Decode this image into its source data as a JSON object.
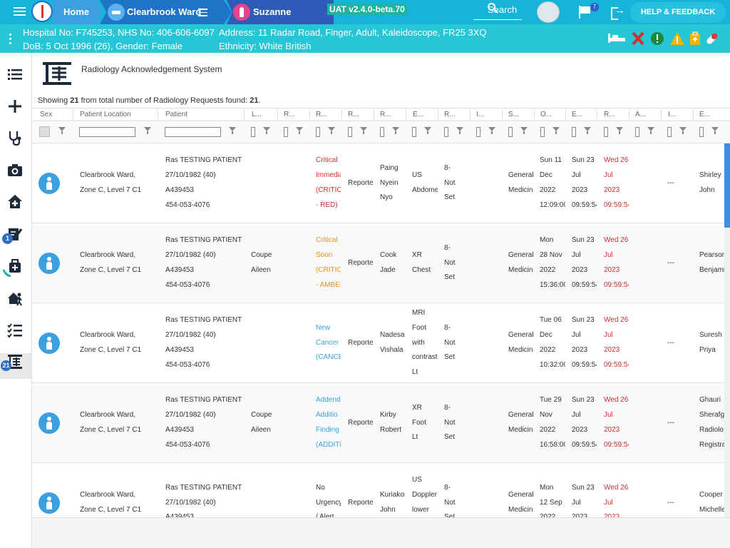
{
  "topbar": {
    "home_label": "Home",
    "ward_label": "Clearbrook Ward",
    "patient_name": "Suzanne SYMONS",
    "version": "UAT v2.4.0-beta.70",
    "search_label": "Search",
    "flag_count": "7",
    "help_label": "HELP & FEEDBACK"
  },
  "banner": {
    "line1_left": "Hospital No: F745253, NHS No: 406-606-6097",
    "line2_left": "DoB: 5 Oct 1996 (26), Gender: Female",
    "line1_right": "Address: 11 Radar Road, Finger, Adult, Kaleidoscope, FR25 3XQ",
    "line2_right": "Ethnicity: White British"
  },
  "sidebar": {
    "badge_notes": "1",
    "badge_radiology": "21"
  },
  "page": {
    "title": "Radiology Acknowledgement System",
    "showing_prefix": "Showing ",
    "showing_count": "21",
    "showing_mid": " from total number of Radiology Requests found: ",
    "showing_total": "21",
    "showing_suffix": "."
  },
  "columns": [
    "Sex",
    "Patient Location",
    "Patient",
    "L...",
    "R...",
    "R...",
    "R...",
    "R...",
    "E...",
    "R...",
    "I...",
    "S...",
    "O...",
    "E...",
    "R...",
    "A...",
    "I...",
    "E..."
  ],
  "rows": [
    {
      "location": [
        "Clearbrook Ward,",
        "Zone C, Level 7 C1"
      ],
      "patient": [
        "Ras TESTING PATIENT",
        "27/10/1982 (40)",
        "A439453",
        "454-053-4076"
      ],
      "requester": [],
      "priority": [
        "Critical",
        "Immedia",
        "(CRITIC",
        "- RED)"
      ],
      "priority_color": "red",
      "status": "Reporte",
      "reporter": [
        "Paing",
        "Nyein",
        "Nyo"
      ],
      "exam": [
        "US",
        "Abdome"
      ],
      "risk": [
        "8-",
        "Not",
        "Set"
      ],
      "specialty": [
        "General",
        "Medicin"
      ],
      "ordered": [
        "Sun 11",
        "Dec",
        "2022",
        "12:09:00"
      ],
      "exam_date": [
        "Sun 23",
        "Jul",
        "2023",
        "09:59:54"
      ],
      "report_date": [
        "Wed 26",
        "Jul",
        "2023",
        "09:59:54"
      ],
      "ack": "---",
      "entered_by": [
        "Shirley",
        "John"
      ]
    },
    {
      "location": [
        "Clearbrook Ward,",
        "Zone C, Level 7 C1"
      ],
      "patient": [
        "Ras TESTING PATIENT",
        "27/10/1982 (40)",
        "A439453",
        "454-053-4076"
      ],
      "requester": [
        "Coupe",
        "Aileen"
      ],
      "priority": [
        "Critical",
        "Soon",
        "(CRITIC",
        "- AMBEI"
      ],
      "priority_color": "orange",
      "status": "Reporte",
      "reporter": [
        "Cook",
        "Jade"
      ],
      "exam": [
        "XR",
        "Chest"
      ],
      "risk": [
        "8-",
        "Not",
        "Set"
      ],
      "specialty": [
        "General",
        "Medicin"
      ],
      "ordered": [
        "Mon",
        "28 Nov",
        "2022",
        "15:36:00"
      ],
      "exam_date": [
        "Sun 23",
        "Jul",
        "2023",
        "09:59:54"
      ],
      "report_date": [
        "Wed 26",
        "Jul",
        "2023",
        "09:59:54"
      ],
      "ack": "---",
      "entered_by": [
        "Pearson",
        "Benjami"
      ]
    },
    {
      "location": [
        "Clearbrook Ward,",
        "Zone C, Level 7 C1"
      ],
      "patient": [
        "Ras TESTING PATIENT",
        "27/10/1982 (40)",
        "A439453",
        "454-053-4076"
      ],
      "requester": [],
      "priority": [
        "New",
        "Cancer",
        "(CANCE"
      ],
      "priority_color": "blue",
      "status": "Reporte",
      "reporter": [
        "Nadesar",
        "Vishala"
      ],
      "exam": [
        "MRI",
        "Foot",
        "with",
        "contrast",
        "Lt"
      ],
      "risk": [
        "8-",
        "Not",
        "Set"
      ],
      "specialty": [
        "General",
        "Medicin"
      ],
      "ordered": [
        "Tue 06",
        "Dec",
        "2022",
        "10:32:00"
      ],
      "exam_date": [
        "Sun 23",
        "Jul",
        "2023",
        "09:59:54"
      ],
      "report_date": [
        "Wed 26",
        "Jul",
        "2023",
        "09:59:54"
      ],
      "ack": "---",
      "entered_by": [
        "Suresh",
        "Priya"
      ]
    },
    {
      "location": [
        "Clearbrook Ward,",
        "Zone C, Level 7 C1"
      ],
      "patient": [
        "Ras TESTING PATIENT",
        "27/10/1982 (40)",
        "A439453",
        "454-053-4076"
      ],
      "requester": [
        "Coupe",
        "Aileen"
      ],
      "priority": [
        "Addend",
        "Additio",
        "Finding",
        "(ADDITI"
      ],
      "priority_color": "blue",
      "status": "Reporte",
      "reporter": [
        "Kirby",
        "Robert"
      ],
      "exam": [
        "XR",
        "Foot",
        "Lt"
      ],
      "risk": [
        "8-",
        "Not",
        "Set"
      ],
      "specialty": [
        "General",
        "Medicin"
      ],
      "ordered": [
        "Tue 29",
        "Nov",
        "2022",
        "16:58:00"
      ],
      "exam_date": [
        "Sun 23",
        "Jul",
        "2023",
        "09:59:54"
      ],
      "report_date": [
        "Wed 26",
        "Jul",
        "2023",
        "09:59:54"
      ],
      "ack": "---",
      "entered_by": [
        "Ghauri",
        "Sherafgl",
        "Radiolo",
        "Registra"
      ]
    },
    {
      "location": [
        "Clearbrook Ward,",
        "Zone C, Level 7 C1"
      ],
      "patient": [
        "Ras TESTING PATIENT",
        "27/10/1982 (40)",
        "A439453"
      ],
      "requester": [],
      "priority": [
        "No",
        "Urgency",
        "/ Alert"
      ],
      "priority_color": "default",
      "status": "Reporte",
      "reporter": [
        "Kuriakos",
        "John"
      ],
      "exam": [
        "US",
        "Doppler",
        "lower",
        "limb"
      ],
      "risk": [
        "8-",
        "Not",
        "Set"
      ],
      "specialty": [
        "General",
        "Medicin"
      ],
      "ordered": [
        "Mon",
        "12 Sep",
        "2022"
      ],
      "exam_date": [
        "Sun 23",
        "Jul",
        "2023"
      ],
      "report_date": [
        "Wed 26",
        "Jul",
        "2023"
      ],
      "ack": "---",
      "entered_by": [
        "Cooper",
        "Michelle"
      ]
    }
  ]
}
